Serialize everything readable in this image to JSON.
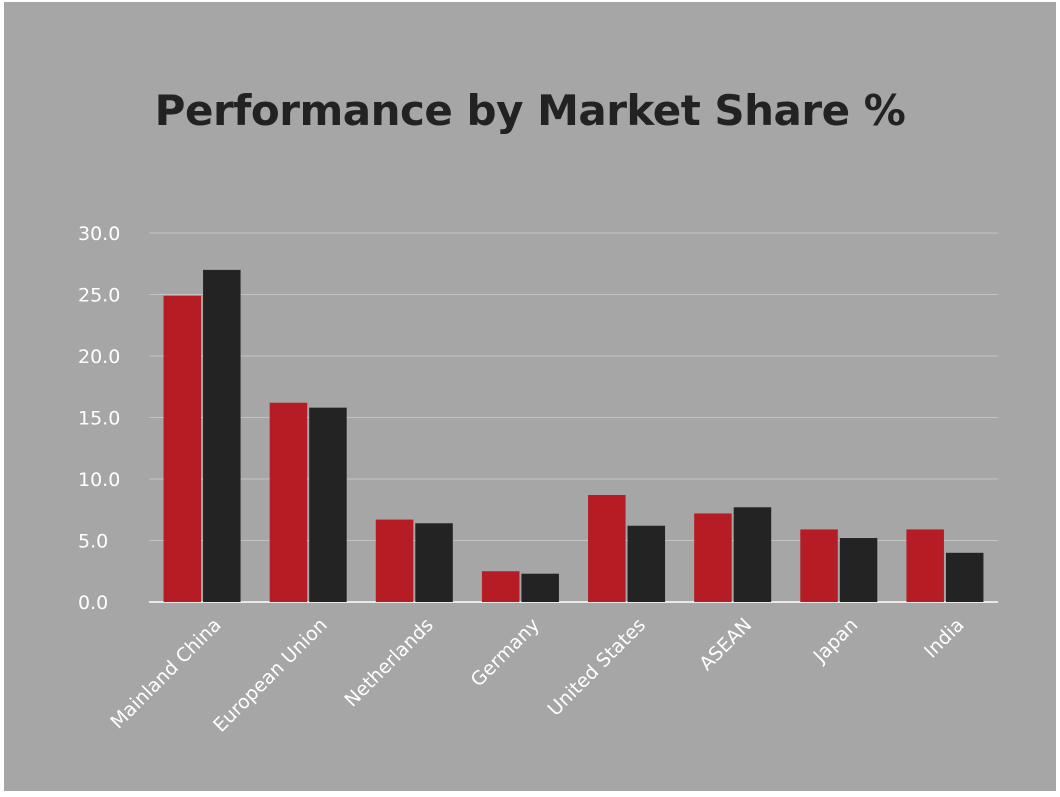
{
  "chart_data": {
    "type": "bar",
    "title": "Performance by Market Share %",
    "categories": [
      "Mainland China",
      "European Union",
      "Netherlands",
      "Germany",
      "United States",
      "ASEAN",
      "Japan",
      "India"
    ],
    "series": [
      {
        "values": [
          24.9,
          16.2,
          6.7,
          2.5,
          8.7,
          7.2,
          5.9,
          5.9
        ]
      },
      {
        "values": [
          27.0,
          15.8,
          6.4,
          2.3,
          6.2,
          7.7,
          5.2,
          4.0
        ]
      }
    ],
    "yticks": [
      "0.0",
      "5.0",
      "10.0",
      "15.0",
      "20.0",
      "25.0",
      "30.0"
    ],
    "ylim": [
      0,
      30
    ],
    "grid": true,
    "colors": [
      "#b51c24",
      "#232323"
    ],
    "background": "#a6a6a6"
  }
}
